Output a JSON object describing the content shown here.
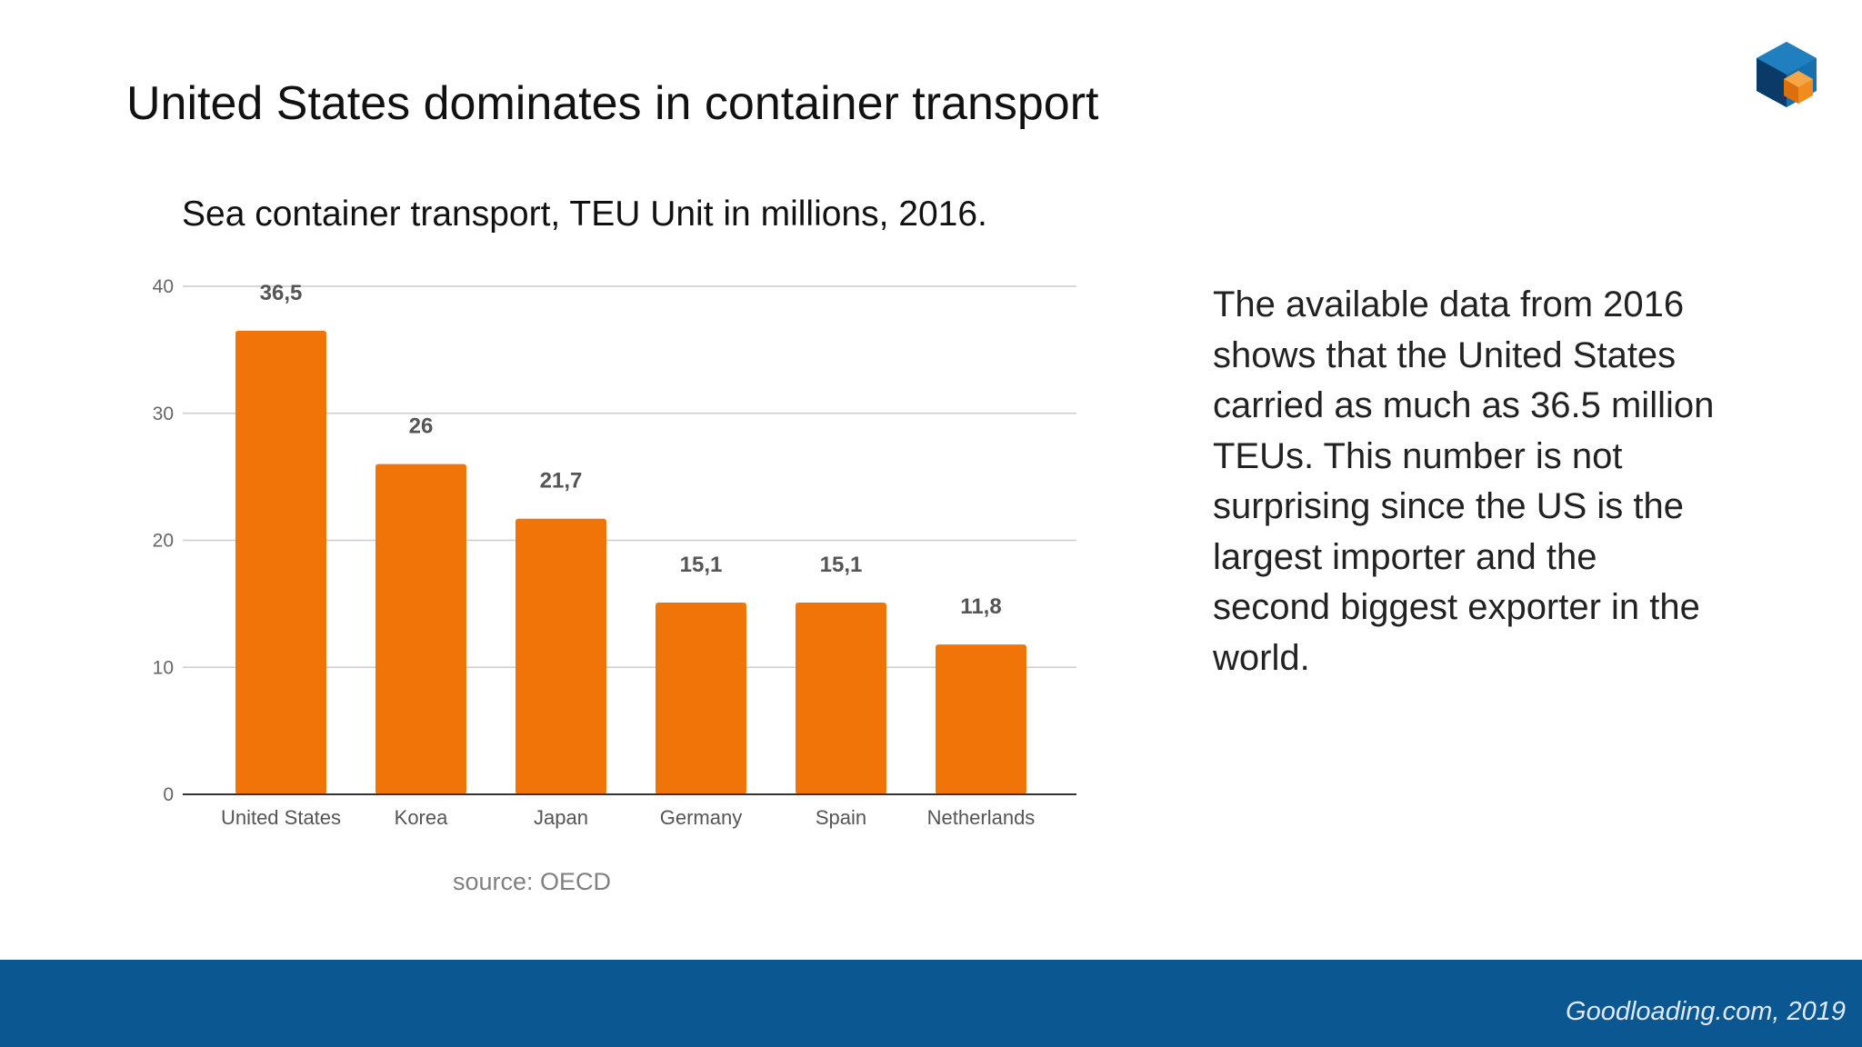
{
  "slide": {
    "title": "United States dominates in container transport",
    "description": "The available data from 2016 shows that the United States carried as much as 36.5 million TEUs. This number is not surprising since the US is the largest importer and the second biggest exporter in the world.",
    "source": "source: OECD",
    "footer": "Goodloading.com, 2019"
  },
  "colors": {
    "bar": "#f07408",
    "footer_bg": "#0a5791",
    "logo_dark": "#0b3a68",
    "logo_mid": "#1670ad",
    "logo_orange": "#f28b1e"
  },
  "icons": {
    "logo": "cube-logo-icon"
  },
  "chart_data": {
    "type": "bar",
    "title": "Sea container transport, TEU Unit in millions, 2016.",
    "categories": [
      "United States",
      "Korea",
      "Japan",
      "Germany",
      "Spain",
      "Netherlands"
    ],
    "values": [
      36.5,
      26,
      21.7,
      15.1,
      15.1,
      11.8
    ],
    "data_labels": [
      "36,5",
      "26",
      "21,7",
      "15,1",
      "15,1",
      "11,8"
    ],
    "xlabel": "",
    "ylabel": "",
    "ylim": [
      0,
      40
    ],
    "yticks": [
      0,
      10,
      20,
      30,
      40
    ],
    "grid": true,
    "legend": "none"
  }
}
